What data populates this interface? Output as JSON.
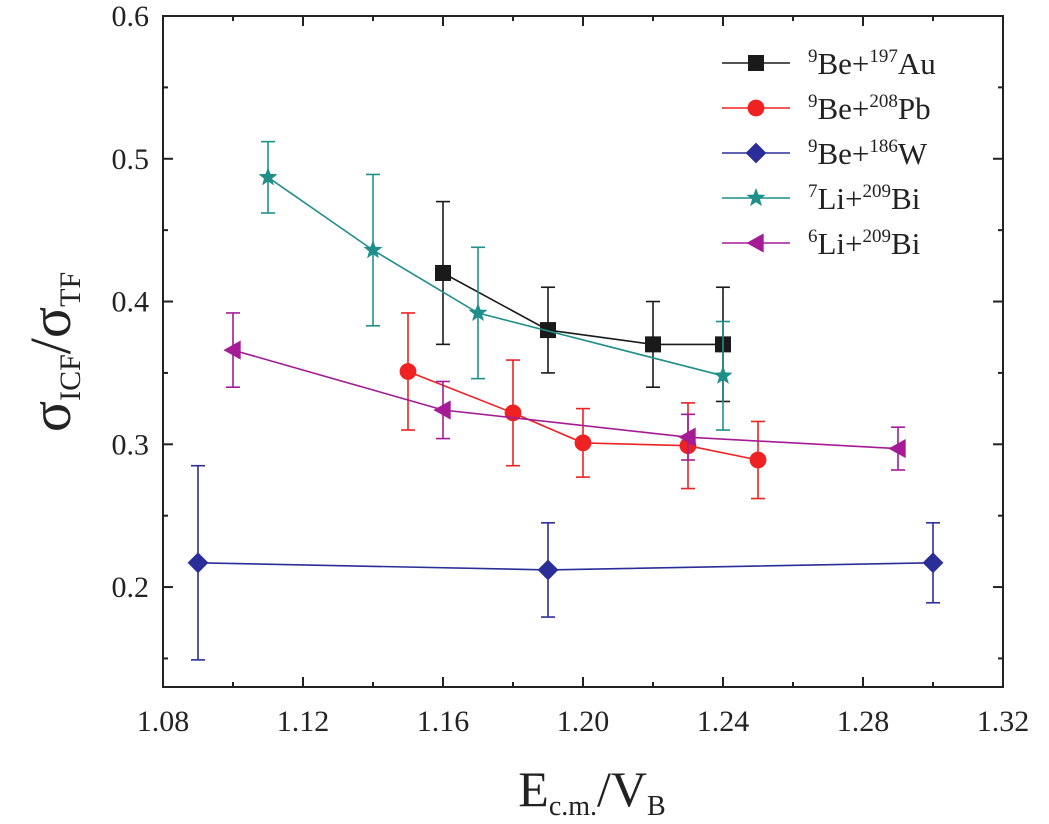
{
  "chart_data": {
    "type": "scatter",
    "title": "",
    "xlabel": {
      "main": "E",
      "sub": "c.m.",
      "slash": "/V",
      "sub2": "B"
    },
    "ylabel": {
      "main": "σ",
      "sub": "ICF",
      "slash": "/σ",
      "sub2": "TF"
    },
    "xlim": [
      1.08,
      1.32
    ],
    "ylim": [
      0.13,
      0.6
    ],
    "x_ticks": [
      1.08,
      1.12,
      1.16,
      1.2,
      1.24,
      1.28,
      1.32
    ],
    "x_tick_labels": [
      "1.08",
      "1.12",
      "1.16",
      "1.20",
      "1.24",
      "1.28",
      "1.32"
    ],
    "y_ticks": [
      0.2,
      0.3,
      0.4,
      0.5,
      0.6
    ],
    "y_tick_labels": [
      "0.2",
      "0.3",
      "0.4",
      "0.5",
      "0.6"
    ],
    "grid": false,
    "legend_position": "top-right",
    "series": [
      {
        "name": "9Be+197Au",
        "label_parts": {
          "pre": "9",
          "a": "Be+",
          "mid": "197",
          "b": "Au"
        },
        "color": "#1a1a1a",
        "marker": "square",
        "x": [
          1.16,
          1.19,
          1.22,
          1.24
        ],
        "y": [
          0.42,
          0.38,
          0.37,
          0.37
        ],
        "err": [
          0.05,
          0.03,
          0.03,
          0.04
        ]
      },
      {
        "name": "9Be+208Pb",
        "label_parts": {
          "pre": "9",
          "a": "Be+",
          "mid": "208",
          "b": "Pb"
        },
        "color": "#ee2222",
        "marker": "circle",
        "x": [
          1.15,
          1.18,
          1.2,
          1.23,
          1.25
        ],
        "y": [
          0.351,
          0.322,
          0.301,
          0.299,
          0.289
        ],
        "err": [
          0.041,
          0.037,
          0.024,
          0.03,
          0.027
        ]
      },
      {
        "name": "9Be+186W",
        "label_parts": {
          "pre": "9",
          "a": "Be+",
          "mid": "186",
          "b": "W"
        },
        "color": "#2b2e98",
        "marker": "diamond",
        "x": [
          1.09,
          1.19,
          1.3
        ],
        "y": [
          0.217,
          0.212,
          0.217
        ],
        "err": [
          0.068,
          0.033,
          0.028
        ]
      },
      {
        "name": "7Li+209Bi",
        "label_parts": {
          "pre": "7",
          "a": "Li+",
          "mid": "209",
          "b": "Bi"
        },
        "color": "#1f8f8a",
        "marker": "star",
        "x": [
          1.11,
          1.14,
          1.17,
          1.24
        ],
        "y": [
          0.487,
          0.436,
          0.392,
          0.348
        ],
        "err": [
          0.025,
          0.053,
          0.046,
          0.038
        ]
      },
      {
        "name": "6Li+209Bi",
        "label_parts": {
          "pre": "6",
          "a": "Li+",
          "mid": "209",
          "b": "Bi"
        },
        "color": "#a51b96",
        "marker": "triangle-left",
        "x": [
          1.1,
          1.16,
          1.23,
          1.29
        ],
        "y": [
          0.366,
          0.324,
          0.305,
          0.297
        ],
        "err": [
          0.026,
          0.02,
          0.016,
          0.015
        ]
      }
    ]
  }
}
